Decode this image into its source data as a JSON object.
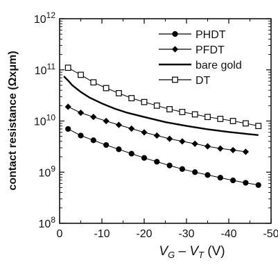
{
  "chart_data": {
    "type": "line",
    "xlabel": {
      "v": "V",
      "g": "G",
      "minus": " – ",
      "t": "T",
      "unit": " (V)"
    },
    "ylabel": "contact resistance (Ωxμm)",
    "x_ticks": [
      "0",
      "-10",
      "-20",
      "-30",
      "-40",
      "-50"
    ],
    "x_tick_values": [
      0,
      -10,
      -20,
      -30,
      -40,
      -50
    ],
    "xlim": [
      0,
      -50
    ],
    "y_ticks": [
      {
        "value": 100000000.0,
        "base": "10",
        "exp": "8"
      },
      {
        "value": 1000000000.0,
        "base": "10",
        "exp": "9"
      },
      {
        "value": 10000000000.0,
        "base": "10",
        "exp": "10"
      },
      {
        "value": 100000000000.0,
        "base": "10",
        "exp": "11"
      },
      {
        "value": 1000000000000.0,
        "base": "10",
        "exp": "12"
      }
    ],
    "ylim": [
      100000000.0,
      1000000000000.0
    ],
    "y_scale": "log",
    "legend_position": "top-right",
    "series": [
      {
        "name": "PHDT",
        "marker": "filled-circle",
        "x": [
          -2,
          -5,
          -8,
          -11,
          -14,
          -17,
          -20,
          -23,
          -26,
          -29,
          -32,
          -35,
          -38,
          -41,
          -44,
          -47
        ],
        "y": [
          7000000000.0,
          5200000000.0,
          4200000000.0,
          3400000000.0,
          2800000000.0,
          2300000000.0,
          1900000000.0,
          1600000000.0,
          1350000000.0,
          1150000000.0,
          1000000000.0,
          880000000.0,
          780000000.0,
          690000000.0,
          620000000.0,
          560000000.0
        ]
      },
      {
        "name": "PFDT",
        "marker": "filled-diamond",
        "x": [
          -2,
          -5,
          -8,
          -11,
          -14,
          -17,
          -20,
          -23,
          -26,
          -29,
          -32,
          -35,
          -38,
          -41,
          -44
        ],
        "y": [
          19000000000.0,
          14500000000.0,
          12000000000.0,
          10000000000.0,
          8400000000.0,
          7100000000.0,
          6000000000.0,
          5200000000.0,
          4500000000.0,
          4000000000.0,
          3600000000.0,
          3200000000.0,
          2900000000.0,
          2700000000.0,
          2500000000.0
        ]
      },
      {
        "name": "bare gold",
        "marker": "none",
        "x": [
          -1,
          -2,
          -3,
          -5,
          -7,
          -10,
          -13,
          -16,
          -20,
          -25,
          -30,
          -35,
          -40,
          -45,
          -47
        ],
        "y": [
          75000000000.0,
          62000000000.0,
          50000000000.0,
          37000000000.0,
          29000000000.0,
          22000000000.0,
          17500000000.0,
          14500000000.0,
          12000000000.0,
          9500000000.0,
          8000000000.0,
          6900000000.0,
          6100000000.0,
          5500000000.0,
          5300000000.0
        ]
      },
      {
        "name": "DT",
        "marker": "open-square",
        "x": [
          -2,
          -5,
          -8,
          -11,
          -14,
          -17,
          -20,
          -23,
          -26,
          -29,
          -32,
          -35,
          -38,
          -41,
          -44,
          -47
        ],
        "y": [
          110000000000.0,
          80000000000.0,
          57000000000.0,
          44000000000.0,
          35000000000.0,
          28000000000.0,
          23500000000.0,
          20000000000.0,
          17000000000.0,
          15000000000.0,
          13500000000.0,
          12000000000.0,
          11000000000.0,
          10000000000.0,
          9000000000.0,
          8000000000.0
        ]
      }
    ],
    "colors": {
      "line": "#000000",
      "frame": "#000000",
      "background": "#ffffff"
    }
  }
}
